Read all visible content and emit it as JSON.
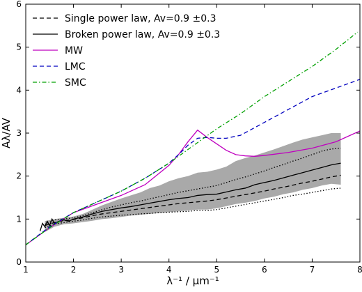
{
  "chart_data": {
    "type": "line",
    "xlabel": "λ⁻¹ / μm⁻¹",
    "ylabel": "Aλ/AV",
    "xlim": [
      1,
      8
    ],
    "ylim": [
      0,
      6
    ],
    "x_ticks": [
      1,
      2,
      3,
      4,
      5,
      6,
      7,
      8
    ],
    "y_ticks": [
      0,
      1,
      2,
      3,
      4,
      5,
      6
    ],
    "legend_position": "top-left",
    "band": {
      "color": "#a9a9a9",
      "x": [
        1.4,
        1.6,
        1.8,
        2.0,
        2.2,
        2.4,
        2.6,
        2.8,
        3.0,
        3.2,
        3.4,
        3.6,
        3.8,
        4.0,
        4.2,
        4.4,
        4.6,
        4.8,
        5.0,
        5.2,
        5.4,
        5.6,
        5.8,
        6.0,
        6.2,
        6.4,
        6.6,
        6.8,
        7.0,
        7.2,
        7.4,
        7.6
      ],
      "upper": [
        0.95,
        1.0,
        1.03,
        1.06,
        1.12,
        1.22,
        1.32,
        1.4,
        1.48,
        1.55,
        1.62,
        1.72,
        1.78,
        1.88,
        1.95,
        2.0,
        2.08,
        2.1,
        2.15,
        2.22,
        2.35,
        2.42,
        2.48,
        2.55,
        2.62,
        2.7,
        2.78,
        2.85,
        2.9,
        2.95,
        3.0,
        3.0
      ],
      "lower": [
        0.7,
        0.82,
        0.88,
        0.9,
        0.93,
        0.96,
        1.0,
        1.02,
        1.05,
        1.08,
        1.1,
        1.12,
        1.14,
        1.16,
        1.18,
        1.2,
        1.22,
        1.22,
        1.25,
        1.3,
        1.35,
        1.38,
        1.42,
        1.48,
        1.52,
        1.58,
        1.62,
        1.68,
        1.72,
        1.78,
        1.82,
        1.8
      ]
    },
    "series": [
      {
        "name": "Single power law, Av=0.9 ±0.3",
        "color": "#000000",
        "style": "dashed",
        "x": [
          1.4,
          1.6,
          1.8,
          2.0,
          2.2,
          2.4,
          2.6,
          2.8,
          3.0,
          3.2,
          3.4,
          3.6,
          3.8,
          4.0,
          4.2,
          4.4,
          4.6,
          4.8,
          5.0,
          5.2,
          5.4,
          5.6,
          5.8,
          6.0,
          6.2,
          6.4,
          6.6,
          6.8,
          7.0,
          7.2,
          7.4,
          7.6
        ],
        "y": [
          0.85,
          0.92,
          0.96,
          0.99,
          1.03,
          1.08,
          1.12,
          1.15,
          1.18,
          1.21,
          1.24,
          1.27,
          1.3,
          1.33,
          1.36,
          1.38,
          1.4,
          1.42,
          1.45,
          1.49,
          1.53,
          1.57,
          1.61,
          1.65,
          1.7,
          1.74,
          1.79,
          1.84,
          1.88,
          1.93,
          1.98,
          2.02
        ]
      },
      {
        "name": "Broken power law, Av=0.9 ±0.3",
        "color": "#000000",
        "style": "solid",
        "x": [
          1.3,
          1.35,
          1.4,
          1.45,
          1.5,
          1.55,
          1.6,
          1.7,
          1.8,
          1.9,
          2.0,
          2.2,
          2.4,
          2.6,
          2.8,
          3.0,
          3.2,
          3.4,
          3.6,
          3.8,
          4.0,
          4.2,
          4.4,
          4.6,
          4.8,
          5.0,
          5.2,
          5.4,
          5.6,
          5.8,
          6.0,
          6.2,
          6.4,
          6.6,
          6.8,
          7.0,
          7.2,
          7.4,
          7.6
        ],
        "y": [
          0.72,
          0.9,
          0.82,
          0.95,
          0.85,
          1.0,
          0.9,
          0.95,
          0.98,
          0.95,
          1.0,
          1.05,
          1.12,
          1.18,
          1.22,
          1.26,
          1.29,
          1.33,
          1.37,
          1.41,
          1.45,
          1.48,
          1.5,
          1.55,
          1.57,
          1.58,
          1.63,
          1.68,
          1.72,
          1.8,
          1.85,
          1.9,
          1.96,
          2.02,
          2.08,
          2.14,
          2.2,
          2.26,
          2.3
        ]
      },
      {
        "name": "MW",
        "color": "#bf00bf",
        "style": "solid",
        "x": [
          1.0,
          1.5,
          2.0,
          2.5,
          3.0,
          3.5,
          4.0,
          4.2,
          4.4,
          4.6,
          4.8,
          5.0,
          5.2,
          5.4,
          5.6,
          5.8,
          6.0,
          6.5,
          7.0,
          7.5,
          8.0
        ],
        "y": [
          0.4,
          0.8,
          1.15,
          1.35,
          1.55,
          1.8,
          2.25,
          2.5,
          2.8,
          3.07,
          2.9,
          2.75,
          2.6,
          2.5,
          2.47,
          2.46,
          2.48,
          2.55,
          2.65,
          2.8,
          3.05
        ]
      },
      {
        "name": "LMC",
        "color": "#0000bf",
        "style": "dashed",
        "x": [
          1.0,
          1.5,
          2.0,
          2.5,
          3.0,
          3.5,
          4.0,
          4.2,
          4.4,
          4.6,
          4.8,
          5.0,
          5.2,
          5.5,
          6.0,
          6.5,
          7.0,
          7.5,
          8.0
        ],
        "y": [
          0.4,
          0.82,
          1.15,
          1.4,
          1.65,
          1.95,
          2.3,
          2.5,
          2.72,
          2.88,
          2.9,
          2.88,
          2.88,
          2.95,
          3.25,
          3.55,
          3.85,
          4.05,
          4.25
        ]
      },
      {
        "name": "SMC",
        "color": "#00a000",
        "style": "dashdot",
        "x": [
          1.0,
          1.5,
          2.0,
          2.5,
          3.0,
          3.5,
          4.0,
          4.5,
          5.0,
          5.5,
          6.0,
          6.5,
          7.0,
          7.5,
          7.95
        ],
        "y": [
          0.4,
          0.8,
          1.15,
          1.4,
          1.65,
          1.95,
          2.3,
          2.7,
          3.1,
          3.45,
          3.85,
          4.2,
          4.55,
          4.95,
          5.35
        ]
      }
    ],
    "extra_lines": [
      {
        "color": "#000000",
        "style": "dotted",
        "x": [
          1.4,
          1.6,
          1.8,
          2.0,
          2.2,
          2.4,
          2.6,
          2.8,
          3.0,
          3.2,
          3.4,
          3.6,
          3.8,
          4.0,
          4.2,
          4.4,
          4.6,
          4.8,
          5.0,
          5.2,
          5.4,
          5.6,
          5.8,
          6.0,
          6.2,
          6.4,
          6.6,
          6.8,
          7.0,
          7.2,
          7.4,
          7.6
        ],
        "y": [
          0.88,
          0.98,
          1.0,
          1.03,
          1.08,
          1.15,
          1.22,
          1.28,
          1.33,
          1.38,
          1.42,
          1.47,
          1.52,
          1.57,
          1.62,
          1.66,
          1.7,
          1.74,
          1.78,
          1.85,
          1.92,
          1.98,
          2.05,
          2.12,
          2.2,
          2.27,
          2.35,
          2.42,
          2.5,
          2.58,
          2.63,
          2.65
        ]
      },
      {
        "color": "#000000",
        "style": "dotted",
        "x": [
          1.4,
          1.6,
          1.8,
          2.0,
          2.2,
          2.4,
          2.6,
          2.8,
          3.0,
          3.2,
          3.4,
          3.6,
          3.8,
          4.0,
          4.2,
          4.4,
          4.6,
          4.8,
          5.0,
          5.2,
          5.4,
          5.6,
          5.8,
          6.0,
          6.2,
          6.4,
          6.6,
          6.8,
          7.0,
          7.2,
          7.4,
          7.6
        ],
        "y": [
          0.8,
          0.88,
          0.92,
          0.95,
          0.98,
          1.02,
          1.05,
          1.07,
          1.09,
          1.1,
          1.12,
          1.13,
          1.15,
          1.16,
          1.17,
          1.18,
          1.2,
          1.2,
          1.22,
          1.26,
          1.3,
          1.34,
          1.38,
          1.42,
          1.46,
          1.5,
          1.55,
          1.58,
          1.62,
          1.66,
          1.7,
          1.72
        ]
      }
    ]
  }
}
